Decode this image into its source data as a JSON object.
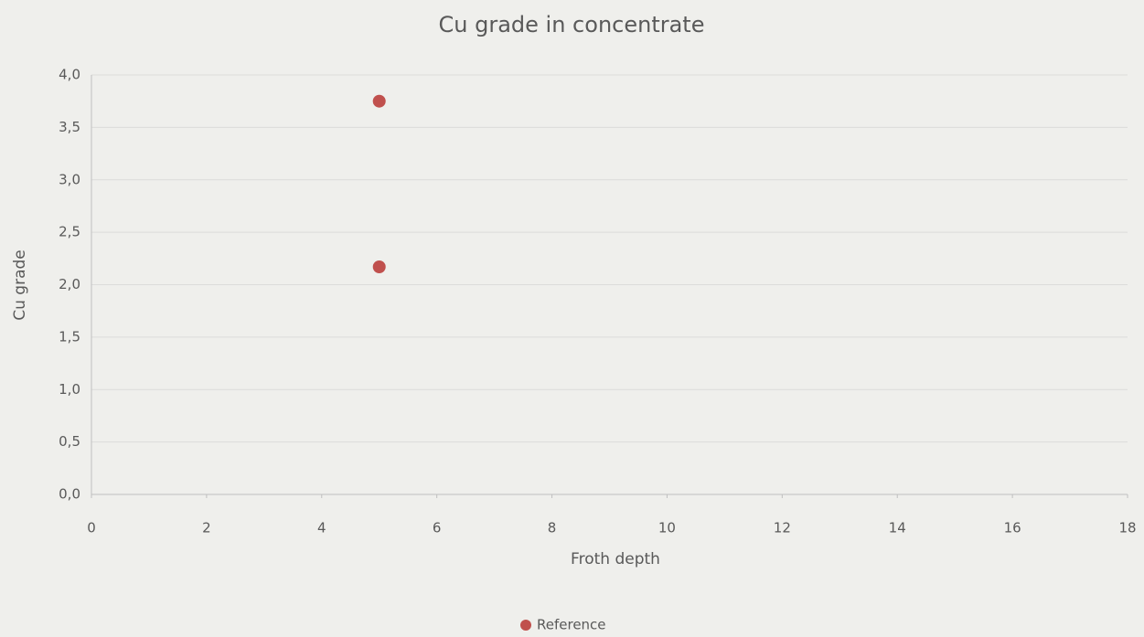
{
  "chart_data": {
    "type": "scatter",
    "title": "Cu grade in concentrate",
    "x_label": "Froth depth",
    "y_label": "Cu grade",
    "series": [
      {
        "name": "Reference",
        "color": "#c0504d",
        "x": [
          5,
          5
        ],
        "values": [
          3.75,
          2.17
        ]
      }
    ],
    "xlim": [
      0,
      18
    ],
    "xticks": [
      0,
      2,
      4,
      6,
      8,
      10,
      12,
      14,
      16,
      18
    ],
    "ylim": [
      0,
      4
    ],
    "yticks": [
      {
        "value": 0,
        "label": "0,0"
      },
      {
        "value": 0.5,
        "label": "0,5"
      },
      {
        "value": 1,
        "label": "1,0"
      },
      {
        "value": 1.5,
        "label": "1,5"
      },
      {
        "value": 2,
        "label": "2,0"
      },
      {
        "value": 2.5,
        "label": "2,5"
      },
      {
        "value": 3,
        "label": "3,0"
      },
      {
        "value": 3.5,
        "label": "3,5"
      },
      {
        "value": 4,
        "label": "4,0"
      }
    ],
    "grid": true,
    "legend": "bottom"
  }
}
